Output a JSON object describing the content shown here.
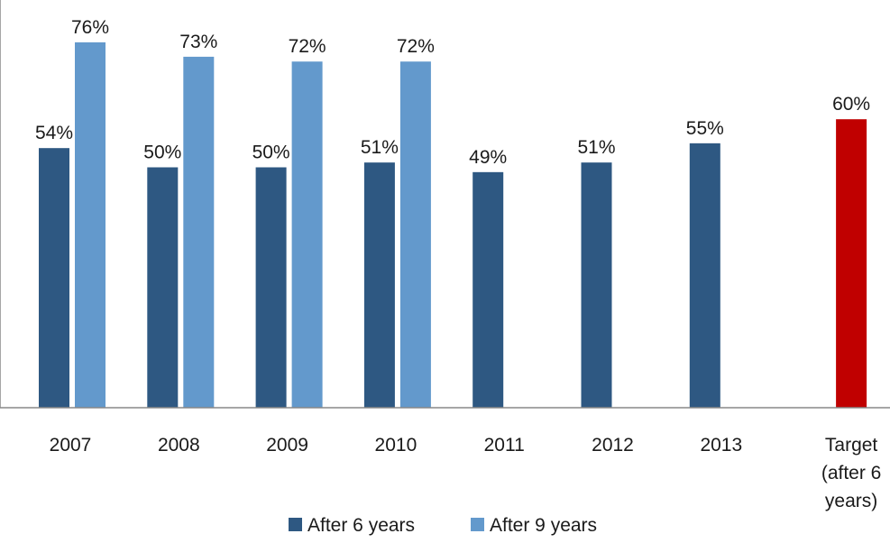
{
  "chart_data": {
    "type": "bar",
    "categories": [
      "2007",
      "2008",
      "2009",
      "2010",
      "2011",
      "2012",
      "2013",
      "Target (after 6 years)"
    ],
    "category_lines": [
      [
        "2007"
      ],
      [
        "2008"
      ],
      [
        "2009"
      ],
      [
        "2010"
      ],
      [
        "2011"
      ],
      [
        "2012"
      ],
      [
        "2013"
      ],
      [
        "Target",
        "(after 6",
        "years)"
      ]
    ],
    "series": [
      {
        "name": "After 6 years",
        "values": [
          54,
          50,
          50,
          51,
          49,
          51,
          55,
          null
        ],
        "color": "#2e5882"
      },
      {
        "name": "After 9 years",
        "values": [
          76,
          73,
          72,
          72,
          null,
          null,
          null,
          null
        ],
        "color": "#6399cc"
      }
    ],
    "target": {
      "category": "Target (after 6 years)",
      "value": 60,
      "color": "#c00000"
    },
    "value_suffix": "%",
    "ylim": [
      0,
      80
    ],
    "grid": false,
    "legend_position": "bottom-center"
  }
}
